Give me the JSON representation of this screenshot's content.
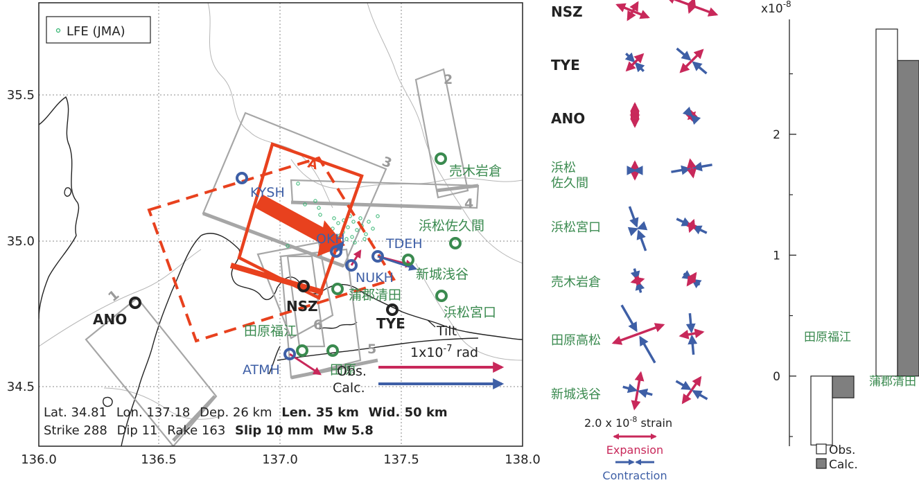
{
  "map": {
    "legend_label": "LFE (JMA)",
    "x_ticks": [
      "136.0",
      "136.5",
      "137.0",
      "137.5",
      "138.0"
    ],
    "y_ticks": [
      "35.5",
      "35.0",
      "34.5"
    ],
    "fault_numbers": [
      "1",
      "2",
      "3",
      "4",
      "5",
      "6"
    ],
    "stations": {
      "ano": "ANO",
      "nsz": "NSZ",
      "tye": "TYE",
      "kysh": "KYSH",
      "okh": "OKH",
      "tdeh": "TDEH",
      "nukh": "NUKH",
      "atmh": "ATMH",
      "uragi": "売木岩倉",
      "sakuma": "浜松佐久間",
      "shinshiro": "新城浅谷",
      "gamagori": "蒲郡清田",
      "miyaguchi": "浜松宮口",
      "fukue": "田原福江",
      "tahara": "田原"
    },
    "fault_marker": "A",
    "tilt_label": "Tilt",
    "tilt_scale": "1x10",
    "tilt_exp": "-7",
    "tilt_unit": " rad",
    "obs_label": "Obs.",
    "calc_label": "Calc.",
    "info_line1": {
      "lat": "Lat. 34.81",
      "lon": "Lon. 137.18",
      "dep": "Dep. 26 km",
      "len": "Len. 35 km",
      "wid": "Wid. 50 km"
    },
    "info_line2": {
      "strike": "Strike 288",
      "dip": "Dip 11",
      "rake": "Rake 163",
      "slip": "Slip 10 mm",
      "mw": "Mw 5.8"
    }
  },
  "strain": {
    "rows": [
      "NSZ",
      "TYE",
      "ANO",
      "浜松\n佐久間",
      "浜松宮口",
      "売木岩倉",
      "田原高松",
      "新城浅谷"
    ],
    "scale_text": "2.0 x 10",
    "scale_exp": "-8",
    "scale_unit": " strain",
    "expansion": "Expansion",
    "contraction": "Contraction"
  },
  "chart_data": {
    "type": "bar",
    "title": "",
    "ylabel_multiplier": "x10",
    "ylabel_exp": "-8",
    "categories": [
      "田原福江",
      "蒲郡清田"
    ],
    "series": [
      {
        "name": "Obs.",
        "values": [
          -0.57,
          2.87
        ]
      },
      {
        "name": "Calc.",
        "values": [
          -0.18,
          2.61
        ]
      }
    ],
    "y_ticks": [
      "0",
      "1",
      "2"
    ],
    "ylim": [
      -0.58,
      2.95
    ],
    "series_colors": [
      "#ffffff",
      "#7f7f7f"
    ]
  },
  "colors": {
    "obs": "#c8285a",
    "calc": "#3e5fa6",
    "lfe": "#2fb36e",
    "fault": "#e8411e"
  }
}
